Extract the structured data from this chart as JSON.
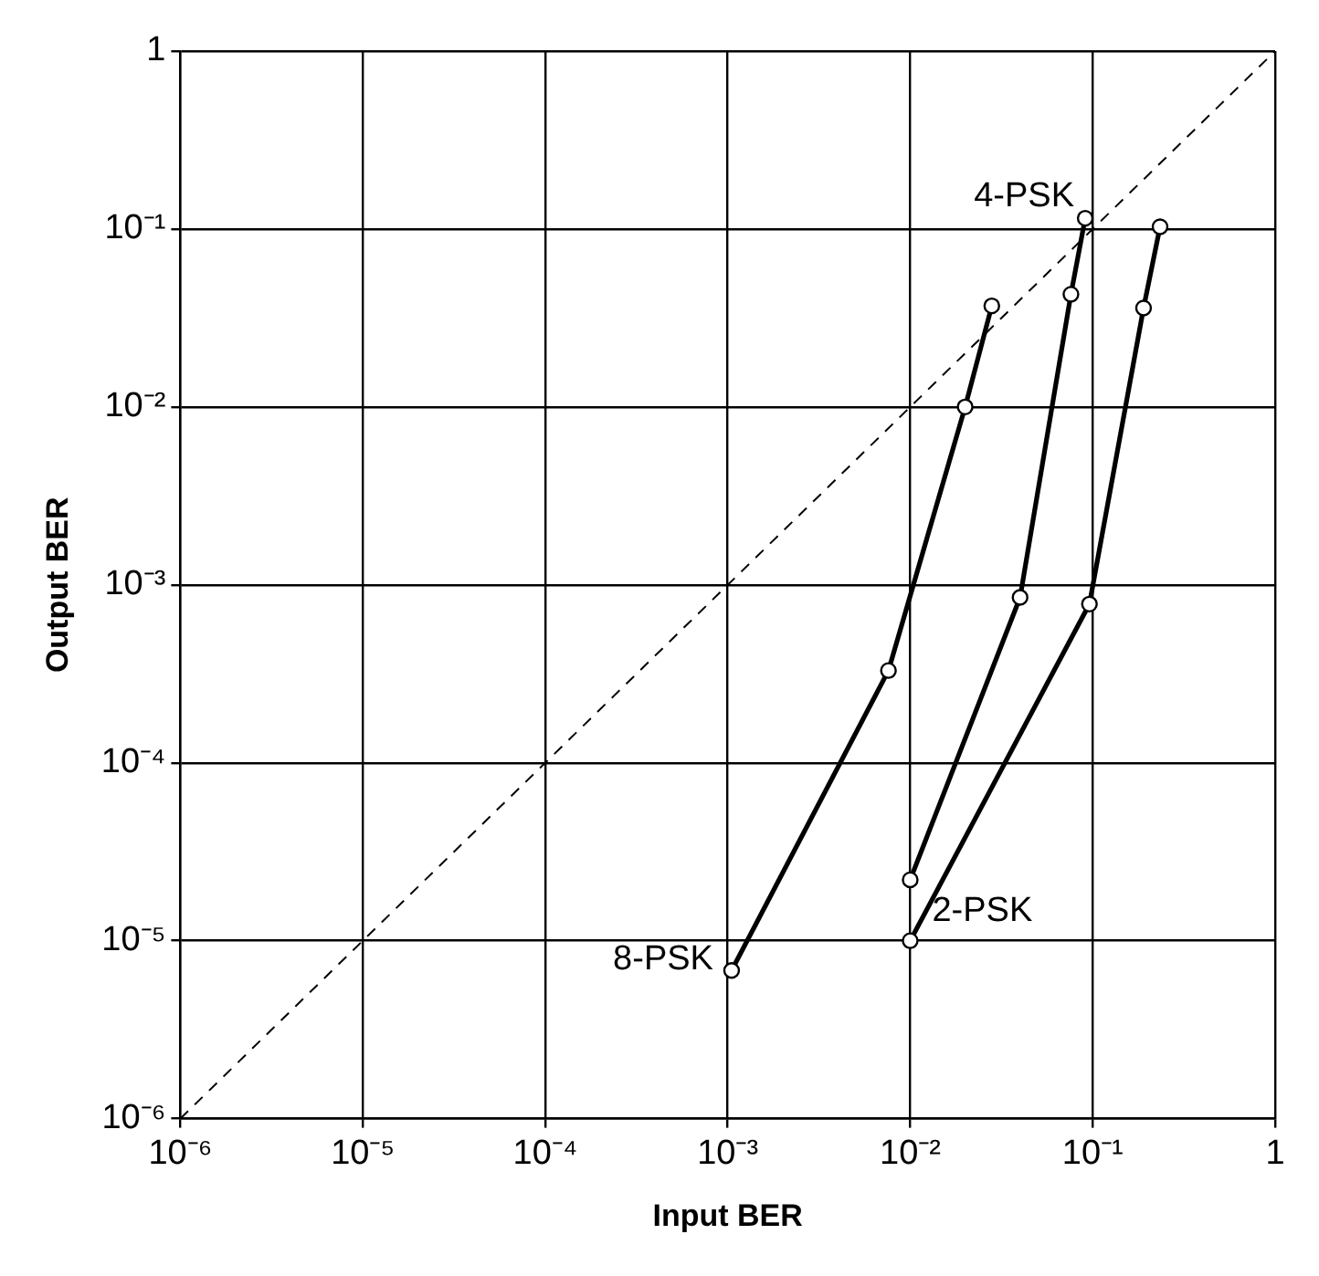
{
  "chart_data": {
    "type": "line",
    "xlabel": "Input BER",
    "ylabel": "Output BER",
    "log": "xy",
    "grid": true,
    "legend": false,
    "marker": "circle",
    "xlim": [
      1e-06,
      1
    ],
    "ylim": [
      1e-06,
      1
    ],
    "xticks": [
      {
        "value": 1e-06,
        "label": "10⁻⁶"
      },
      {
        "value": 1e-05,
        "label": "10⁻⁵"
      },
      {
        "value": 0.0001,
        "label": "10⁻⁴"
      },
      {
        "value": 0.001,
        "label": "10⁻³"
      },
      {
        "value": 0.01,
        "label": "10⁻²"
      },
      {
        "value": 0.1,
        "label": "10⁻¹"
      },
      1
    ],
    "yticks": [
      {
        "value": 1e-06,
        "label": "10⁻⁶"
      },
      {
        "value": 1e-05,
        "label": "10⁻⁵"
      },
      {
        "value": 0.0001,
        "label": "10⁻⁴"
      },
      {
        "value": 0.001,
        "label": "10⁻³"
      },
      {
        "value": 0.01,
        "label": "10⁻²"
      },
      {
        "value": 0.1,
        "label": "10⁻¹"
      },
      1
    ],
    "series": [
      {
        "name": "8-PSK",
        "color": "#000000",
        "x": [
          0.00105,
          0.0076,
          0.02,
          0.028
        ],
        "values": [
          6.8e-06,
          0.00033,
          0.01,
          0.037
        ]
      },
      {
        "name": "4-PSK",
        "color": "#000000",
        "x": [
          0.01,
          0.04,
          0.076,
          0.091
        ],
        "values": [
          2.2e-05,
          0.00085,
          0.043,
          0.115
        ]
      },
      {
        "name": "2-PSK",
        "color": "#000000",
        "x": [
          0.01,
          0.096,
          0.19,
          0.234
        ],
        "values": [
          1e-05,
          0.00078,
          0.036,
          0.103
        ]
      },
      {
        "type": "line",
        "color": "#000000",
        "line_style": "dashed",
        "marker": "none",
        "x": [
          1e-06,
          1
        ],
        "values": [
          1e-06,
          1
        ]
      }
    ]
  }
}
